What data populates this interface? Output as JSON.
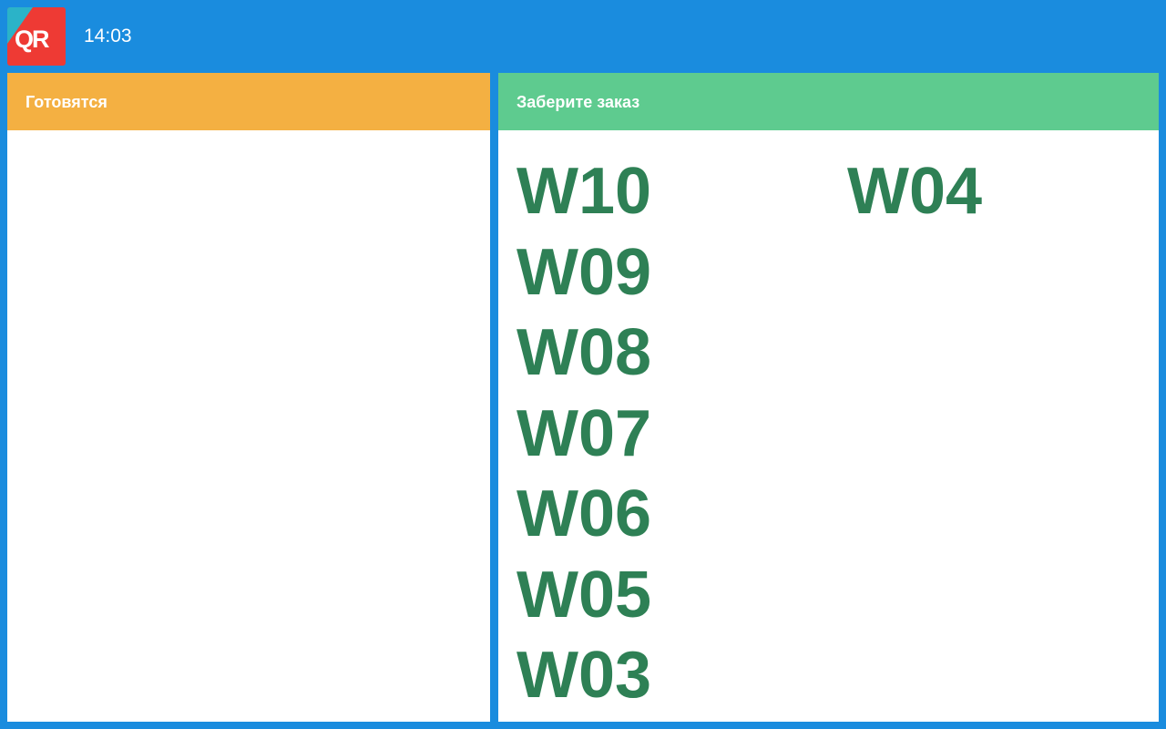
{
  "header": {
    "logo_text": "QR",
    "time": "14:03"
  },
  "preparing": {
    "title": "Готовятся",
    "orders": []
  },
  "ready": {
    "title": "Заберите заказ",
    "orders": [
      "W10",
      "W09",
      "W08",
      "W07",
      "W06",
      "W05",
      "W03",
      "W04"
    ]
  },
  "colors": {
    "background": "#1a8cde",
    "preparing": "#f4b042",
    "ready": "#5ecb8f",
    "order_text": "#2e8055"
  }
}
